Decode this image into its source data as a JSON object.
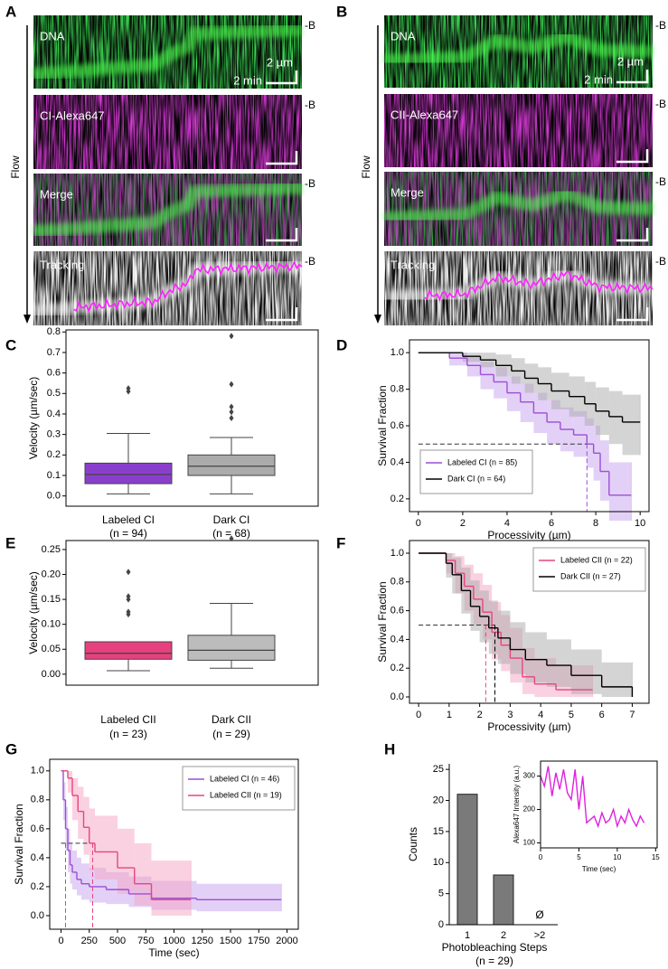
{
  "chart_data": [
    {
      "type": "kymograph",
      "panel": "A",
      "flow_label": "Flow",
      "end_label": "-B",
      "rows": [
        "DNA",
        "CI-Alexa647",
        "Merge",
        "Tracking"
      ],
      "scale_y_label": "2 µm",
      "scale_x_label": "2 min"
    },
    {
      "type": "kymograph",
      "panel": "B",
      "flow_label": "Flow",
      "end_label": "-B",
      "rows": [
        "DNA",
        "CII-Alexa647",
        "Merge",
        "Tracking"
      ],
      "scale_y_label": "2 µm",
      "scale_x_label": "2 min"
    },
    {
      "type": "box",
      "panel": "C",
      "ylabel": "Velocity (µm/sec)",
      "ylim": [
        -0.05,
        0.81
      ],
      "yticks": [
        {
          "value": 0,
          "label": "0.0"
        },
        0.1,
        0.2,
        0.3,
        0.4,
        0.5,
        0.6,
        0.7,
        0.8
      ],
      "series": [
        {
          "name": "Labeled CI",
          "n_label": "(n = 94)",
          "color": "#8a3fcc",
          "low": 0.01,
          "q1": 0.06,
          "median": 0.105,
          "q3": 0.16,
          "high": 0.305,
          "outliers": [
            0.51,
            0.525
          ]
        },
        {
          "name": "Dark CI",
          "n_label": "(n = 68)",
          "color": "#ababab",
          "low": 0.01,
          "q1": 0.1,
          "median": 0.145,
          "q3": 0.2,
          "high": 0.285,
          "outliers": [
            0.38,
            0.41,
            0.435,
            0.545,
            0.78
          ]
        }
      ]
    },
    {
      "type": "survival",
      "panel": "D",
      "xlabel": "Processivity (µm)",
      "ylabel": "Survival Fraction",
      "xlim": [
        -0.4,
        10.4
      ],
      "ylim": [
        0.13,
        1.07
      ],
      "xticks": [
        0,
        2,
        4,
        6,
        8,
        10
      ],
      "yticks": [
        0.2,
        0.4,
        0.6,
        0.8,
        {
          "value": 1,
          "label": "1.0"
        }
      ],
      "reference_y": 0.5,
      "legend": "lower left",
      "series": [
        {
          "name": "Labeled CI (n = 85)",
          "color": "#9b4fd6",
          "band_color": "#c7a2ee",
          "median": 7.6,
          "x": [
            0,
            1.4,
            2.2,
            2.8,
            3.4,
            4.0,
            4.6,
            5.2,
            5.8,
            6.4,
            7.0,
            7.6,
            7.9,
            8.2,
            8.6,
            9.6
          ],
          "y": [
            1,
            0.97,
            0.93,
            0.88,
            0.84,
            0.78,
            0.73,
            0.67,
            0.62,
            0.58,
            0.55,
            0.5,
            0.45,
            0.35,
            0.22,
            0.22
          ],
          "lower": [
            1,
            0.93,
            0.87,
            0.8,
            0.75,
            0.68,
            0.62,
            0.56,
            0.5,
            0.46,
            0.43,
            0.37,
            0.3,
            0.19,
            0.08,
            0.08
          ],
          "upper": [
            1,
            1,
            0.98,
            0.95,
            0.92,
            0.87,
            0.83,
            0.78,
            0.74,
            0.7,
            0.68,
            0.64,
            0.6,
            0.52,
            0.4,
            0.4
          ]
        },
        {
          "name": "Dark CI (n = 64)",
          "color": "#000000",
          "band_color": "#aaaaaa",
          "x": [
            0,
            2.0,
            2.8,
            3.5,
            4.2,
            4.8,
            5.4,
            6.0,
            6.8,
            7.5,
            8.0,
            8.6,
            9.2,
            10.0
          ],
          "y": [
            1,
            0.98,
            0.96,
            0.93,
            0.9,
            0.86,
            0.83,
            0.79,
            0.76,
            0.72,
            0.68,
            0.65,
            0.62,
            0.62
          ],
          "lower": [
            1,
            0.95,
            0.92,
            0.87,
            0.83,
            0.78,
            0.74,
            0.69,
            0.65,
            0.6,
            0.55,
            0.5,
            0.44,
            0.44
          ],
          "upper": [
            1,
            1,
            1,
            0.99,
            0.97,
            0.94,
            0.92,
            0.89,
            0.87,
            0.84,
            0.81,
            0.79,
            0.77,
            0.77
          ]
        }
      ]
    },
    {
      "type": "box",
      "panel": "E",
      "ylabel": "Velocity (µm/sec)",
      "ylim": [
        -0.022,
        0.268
      ],
      "yticks": [
        {
          "value": 0,
          "label": "0.00"
        },
        0.05,
        {
          "value": 0.1,
          "label": "0.10"
        },
        0.15,
        {
          "value": 0.2,
          "label": "0.20"
        },
        0.25
      ],
      "series": [
        {
          "name": "Labeled CII",
          "n_label": "(n = 23)",
          "color": "#e8407e",
          "low": 0.007,
          "q1": 0.03,
          "median": 0.042,
          "q3": 0.065,
          "high": 0.065,
          "outliers": [
            0.12,
            0.125,
            0.15,
            0.156,
            0.205
          ]
        },
        {
          "name": "Dark CII",
          "n_label": "(n = 29)",
          "color": "#bcbcbc",
          "low": 0.012,
          "q1": 0.028,
          "median": 0.048,
          "q3": 0.078,
          "high": 0.142,
          "outliers": [
            0.272
          ]
        }
      ]
    },
    {
      "type": "survival",
      "panel": "F",
      "xlabel": "Processivity (µm)",
      "ylabel": "Survival Fraction",
      "xlim": [
        -0.3,
        7.55
      ],
      "ylim": [
        -0.044,
        1.088
      ],
      "xticks": [
        0,
        1,
        2,
        3,
        4,
        5,
        6,
        7
      ],
      "yticks": [
        {
          "value": 0,
          "label": "0.0"
        },
        0.2,
        0.4,
        0.6,
        0.8,
        {
          "value": 1,
          "label": "1.0"
        }
      ],
      "reference_y": 0.5,
      "legend": "upper right",
      "series": [
        {
          "name": "Labeled CII (n = 22)",
          "color": "#e8447f",
          "band_color": "#f5a3c3",
          "median": 2.2,
          "x": [
            0,
            0.9,
            1.2,
            1.5,
            1.8,
            2.1,
            2.4,
            2.7,
            3.0,
            3.4,
            3.8,
            4.5,
            5.7
          ],
          "y": [
            1,
            0.95,
            0.86,
            0.77,
            0.68,
            0.59,
            0.45,
            0.36,
            0.27,
            0.14,
            0.09,
            0.05,
            0.05
          ],
          "lower": [
            1,
            0.86,
            0.72,
            0.6,
            0.5,
            0.4,
            0.26,
            0.18,
            0.1,
            0.02,
            0,
            0,
            0
          ],
          "upper": [
            1,
            1,
            0.98,
            0.92,
            0.86,
            0.78,
            0.66,
            0.57,
            0.48,
            0.34,
            0.27,
            0.22,
            0.22
          ]
        },
        {
          "name": "Dark CII (n = 27)",
          "color": "#000000",
          "band_color": "#aaaaaa",
          "median": 2.5,
          "x": [
            0,
            0.9,
            1.1,
            1.4,
            1.7,
            2.0,
            2.3,
            2.6,
            3.0,
            3.5,
            4.2,
            5.0,
            6.0,
            7.0
          ],
          "y": [
            1,
            0.93,
            0.85,
            0.74,
            0.63,
            0.56,
            0.48,
            0.41,
            0.33,
            0.26,
            0.22,
            0.15,
            0.07,
            0
          ],
          "lower": [
            1,
            0.83,
            0.72,
            0.58,
            0.46,
            0.38,
            0.3,
            0.23,
            0.16,
            0.1,
            0.07,
            0.02,
            0,
            0
          ],
          "upper": [
            1,
            1,
            0.97,
            0.9,
            0.81,
            0.74,
            0.67,
            0.6,
            0.52,
            0.45,
            0.4,
            0.33,
            0.24,
            0.24
          ]
        }
      ]
    },
    {
      "type": "survival",
      "panel": "G",
      "xlabel": "Time (sec)",
      "ylabel": "Survival Fraction",
      "xlim": [
        -100,
        2100
      ],
      "ylim": [
        -0.094,
        1.08
      ],
      "xticks": [
        0,
        250,
        500,
        750,
        1000,
        1250,
        1500,
        1750,
        2000
      ],
      "yticks": [
        {
          "value": 0,
          "label": "0.0"
        },
        0.2,
        0.4,
        0.6,
        0.8,
        {
          "value": 1,
          "label": "1.0"
        }
      ],
      "reference_y": 0.5,
      "legend": "upper right",
      "series": [
        {
          "name": "Labeled CI (n = 46)",
          "color": "#9b4fd6",
          "band_color": "#c7a2ee",
          "median": 40,
          "x": [
            0,
            20,
            40,
            60,
            80,
            100,
            140,
            180,
            250,
            400,
            600,
            800,
            1200,
            1950
          ],
          "y": [
            1,
            0.8,
            0.6,
            0.45,
            0.35,
            0.3,
            0.25,
            0.22,
            0.2,
            0.18,
            0.15,
            0.12,
            0.11,
            0.11
          ],
          "lower": [
            1,
            0.66,
            0.45,
            0.3,
            0.22,
            0.18,
            0.14,
            0.11,
            0.09,
            0.08,
            0.06,
            0.04,
            0.03,
            0.03
          ],
          "upper": [
            1,
            0.92,
            0.75,
            0.6,
            0.5,
            0.45,
            0.4,
            0.36,
            0.33,
            0.3,
            0.27,
            0.24,
            0.22,
            0.22
          ]
        },
        {
          "name": "Labeled CII (n = 19)",
          "color": "#e8447f",
          "band_color": "#f5a3c3",
          "median": 280,
          "x": [
            0,
            60,
            100,
            150,
            200,
            250,
            300,
            500,
            650,
            800,
            1150
          ],
          "y": [
            1,
            0.95,
            0.83,
            0.72,
            0.61,
            0.5,
            0.44,
            0.33,
            0.22,
            0.11,
            0.11
          ],
          "lower": [
            1,
            0.85,
            0.66,
            0.53,
            0.42,
            0.31,
            0.25,
            0.15,
            0.07,
            0,
            0
          ],
          "upper": [
            1,
            1,
            0.95,
            0.89,
            0.82,
            0.74,
            0.69,
            0.6,
            0.5,
            0.38,
            0.38
          ]
        }
      ]
    },
    {
      "type": "bar",
      "panel": "H",
      "ylabel": "Counts",
      "xlabel": "Photobleaching Steps",
      "n_label": "(n = 29)",
      "categories": [
        "1",
        "2",
        ">2"
      ],
      "values": [
        21,
        8,
        0
      ],
      "annotations": [
        null,
        null,
        "Ø"
      ],
      "color": "#7a7a7a",
      "ylim": [
        0,
        25.9
      ],
      "yticks": [
        0,
        5,
        10,
        15,
        20,
        25
      ],
      "inset": {
        "type": "line",
        "xlabel": "Time (sec)",
        "ylabel": "Alexa647 Intensity (a.u.)",
        "color": "#e020e0",
        "xlim": [
          0,
          15.2
        ],
        "ylim": [
          85,
          345
        ],
        "xticks": [
          0,
          5,
          10,
          15
        ],
        "yticks": [
          100,
          200,
          300
        ],
        "x": [
          0,
          0.5,
          1,
          1.5,
          2,
          2.5,
          3,
          3.5,
          4,
          4.5,
          5,
          5.5,
          6,
          6.5,
          7,
          7.5,
          8,
          8.5,
          9,
          9.5,
          10,
          10.5,
          11,
          11.5,
          12,
          12.5,
          13,
          13.5
        ],
        "values": [
          300,
          270,
          330,
          240,
          310,
          260,
          320,
          250,
          230,
          320,
          200,
          300,
          160,
          170,
          180,
          150,
          190,
          160,
          170,
          200,
          150,
          180,
          160,
          200,
          170,
          150,
          180,
          160
        ]
      }
    }
  ]
}
